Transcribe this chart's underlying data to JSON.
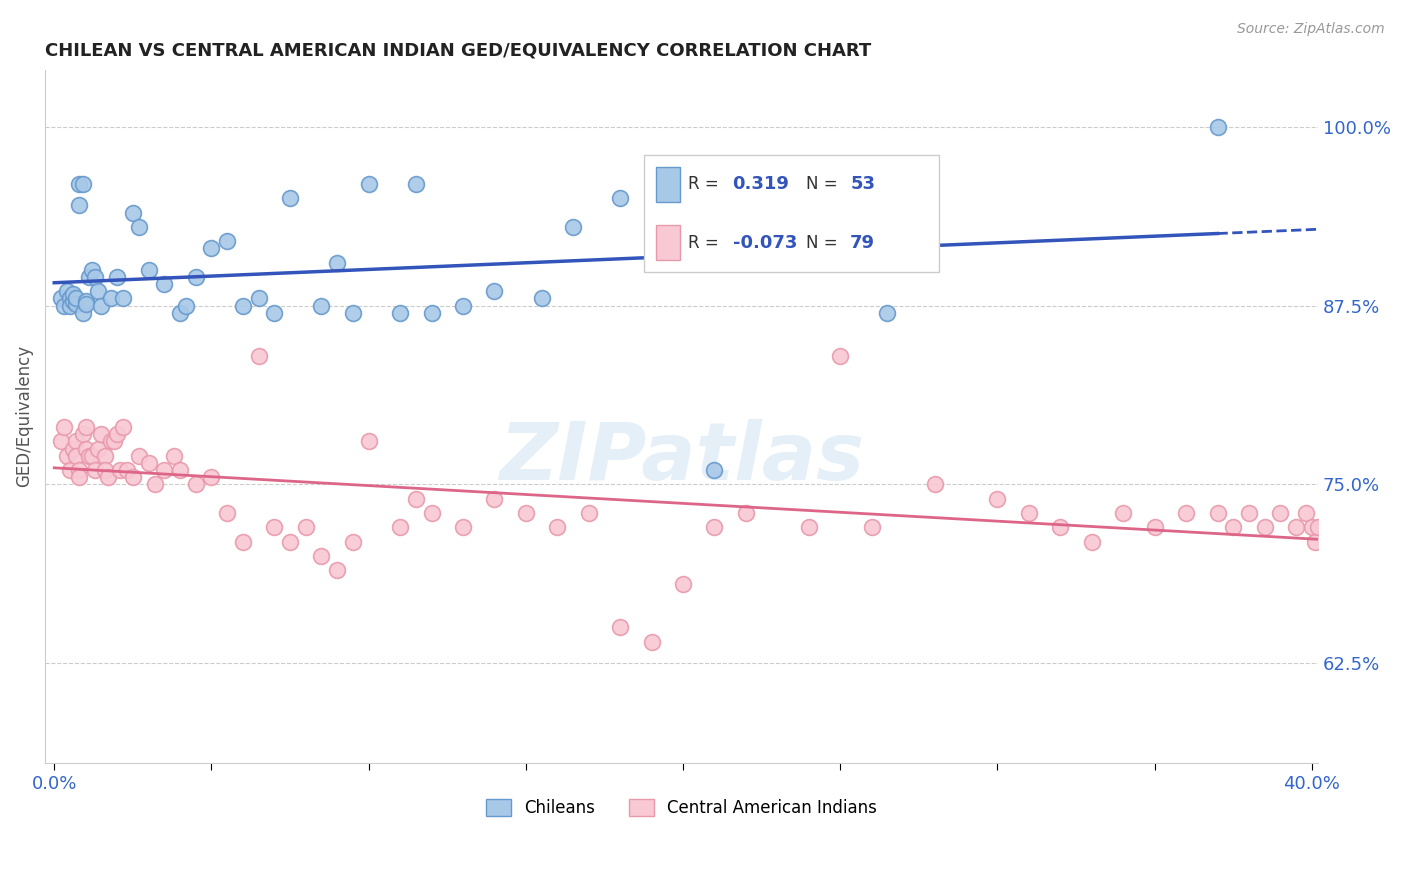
{
  "title": "CHILEAN VS CENTRAL AMERICAN INDIAN GED/EQUIVALENCY CORRELATION CHART",
  "source": "Source: ZipAtlas.com",
  "ylabel": "GED/Equivalency",
  "xlim": [
    -0.003,
    0.402
  ],
  "ylim": [
    0.555,
    1.04
  ],
  "yticks": [
    0.625,
    0.75,
    0.875,
    1.0
  ],
  "ytick_labels": [
    "62.5%",
    "75.0%",
    "87.5%",
    "100.0%"
  ],
  "xticks": [
    0.0,
    0.05,
    0.1,
    0.15,
    0.2,
    0.25,
    0.3,
    0.35,
    0.4
  ],
  "xtick_labels": [
    "0.0%",
    "",
    "",
    "",
    "",
    "",
    "",
    "",
    "40.0%"
  ],
  "r_chilean": 0.319,
  "n_chilean": 53,
  "r_ca_indian": -0.073,
  "n_ca_indian": 79,
  "chilean_color": "#a8c8e8",
  "chilean_edge": "#6699cc",
  "ca_indian_color": "#f8c8d4",
  "ca_indian_edge": "#e899aa",
  "trend_chilean_color": "#3355bb",
  "trend_ca_indian_color": "#dd6688",
  "watermark": "ZIPatlas",
  "chilean_x": [
    0.002,
    0.003,
    0.004,
    0.005,
    0.005,
    0.006,
    0.006,
    0.007,
    0.007,
    0.008,
    0.008,
    0.009,
    0.009,
    0.01,
    0.01,
    0.011,
    0.012,
    0.013,
    0.014,
    0.015,
    0.018,
    0.02,
    0.022,
    0.025,
    0.027,
    0.03,
    0.035,
    0.04,
    0.042,
    0.045,
    0.05,
    0.055,
    0.06,
    0.065,
    0.07,
    0.075,
    0.085,
    0.09,
    0.095,
    0.1,
    0.11,
    0.115,
    0.12,
    0.13,
    0.14,
    0.155,
    0.165,
    0.18,
    0.195,
    0.21,
    0.23,
    0.265,
    0.37
  ],
  "chilean_y": [
    0.88,
    0.875,
    0.885,
    0.88,
    0.875,
    0.878,
    0.883,
    0.876,
    0.88,
    0.96,
    0.945,
    0.96,
    0.87,
    0.878,
    0.876,
    0.895,
    0.9,
    0.895,
    0.885,
    0.875,
    0.88,
    0.895,
    0.88,
    0.94,
    0.93,
    0.9,
    0.89,
    0.87,
    0.875,
    0.895,
    0.915,
    0.92,
    0.875,
    0.88,
    0.87,
    0.95,
    0.875,
    0.905,
    0.87,
    0.96,
    0.87,
    0.96,
    0.87,
    0.875,
    0.885,
    0.88,
    0.93,
    0.95,
    0.96,
    0.76,
    0.92,
    0.87,
    1.0
  ],
  "ca_indian_x": [
    0.002,
    0.003,
    0.004,
    0.005,
    0.006,
    0.007,
    0.007,
    0.008,
    0.008,
    0.009,
    0.01,
    0.01,
    0.011,
    0.012,
    0.013,
    0.014,
    0.015,
    0.016,
    0.016,
    0.017,
    0.018,
    0.019,
    0.02,
    0.021,
    0.022,
    0.023,
    0.025,
    0.027,
    0.03,
    0.032,
    0.035,
    0.038,
    0.04,
    0.045,
    0.05,
    0.055,
    0.06,
    0.065,
    0.07,
    0.075,
    0.08,
    0.085,
    0.09,
    0.095,
    0.1,
    0.11,
    0.115,
    0.12,
    0.13,
    0.14,
    0.15,
    0.16,
    0.17,
    0.18,
    0.19,
    0.2,
    0.21,
    0.22,
    0.24,
    0.25,
    0.26,
    0.28,
    0.3,
    0.31,
    0.32,
    0.33,
    0.34,
    0.35,
    0.36,
    0.37,
    0.375,
    0.38,
    0.385,
    0.39,
    0.395,
    0.398,
    0.4,
    0.401,
    0.402
  ],
  "ca_indian_y": [
    0.78,
    0.79,
    0.77,
    0.76,
    0.775,
    0.78,
    0.77,
    0.76,
    0.755,
    0.785,
    0.79,
    0.775,
    0.77,
    0.77,
    0.76,
    0.775,
    0.785,
    0.77,
    0.76,
    0.755,
    0.78,
    0.78,
    0.785,
    0.76,
    0.79,
    0.76,
    0.755,
    0.77,
    0.765,
    0.75,
    0.76,
    0.77,
    0.76,
    0.75,
    0.755,
    0.73,
    0.71,
    0.84,
    0.72,
    0.71,
    0.72,
    0.7,
    0.69,
    0.71,
    0.78,
    0.72,
    0.74,
    0.73,
    0.72,
    0.74,
    0.73,
    0.72,
    0.73,
    0.65,
    0.64,
    0.68,
    0.72,
    0.73,
    0.72,
    0.84,
    0.72,
    0.75,
    0.74,
    0.73,
    0.72,
    0.71,
    0.73,
    0.72,
    0.73,
    0.73,
    0.72,
    0.73,
    0.72,
    0.73,
    0.72,
    0.73,
    0.72,
    0.71,
    0.72
  ]
}
